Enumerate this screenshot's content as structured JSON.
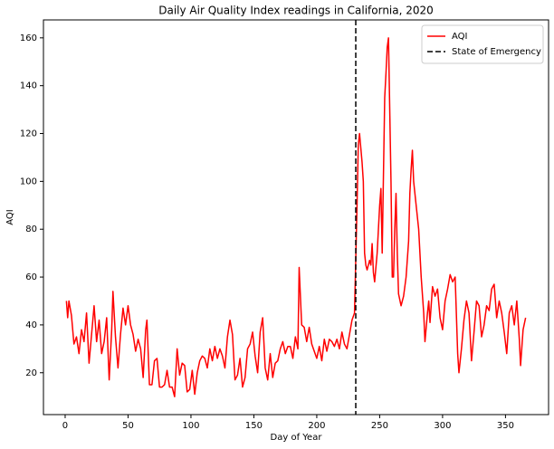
{
  "chart_data": {
    "type": "line",
    "title": "Daily Air Quality Index readings in California, 2020",
    "x_label": "Day of Year",
    "y_label": "AQI",
    "x": [
      1,
      2,
      3,
      5,
      7,
      9,
      11,
      13,
      15,
      17,
      19,
      21,
      23,
      25,
      27,
      29,
      31,
      33,
      35,
      37,
      38,
      40,
      42,
      44,
      46,
      48,
      50,
      52,
      54,
      56,
      58,
      60,
      62,
      64,
      65,
      67,
      69,
      71,
      73,
      75,
      77,
      79,
      81,
      83,
      85,
      87,
      89,
      91,
      93,
      95,
      97,
      99,
      101,
      103,
      105,
      107,
      109,
      111,
      113,
      115,
      117,
      119,
      121,
      123,
      125,
      127,
      129,
      131,
      133,
      135,
      137,
      139,
      141,
      143,
      145,
      147,
      149,
      151,
      153,
      155,
      157,
      159,
      161,
      163,
      165,
      167,
      169,
      171,
      173,
      175,
      177,
      179,
      181,
      183,
      185,
      186,
      188,
      190,
      192,
      194,
      196,
      198,
      200,
      202,
      204,
      206,
      208,
      210,
      212,
      214,
      216,
      218,
      220,
      222,
      224,
      226,
      228,
      230,
      232,
      233,
      234,
      236,
      237,
      238,
      239,
      240,
      242,
      243,
      244,
      245,
      246,
      248,
      249,
      250,
      251,
      252,
      254,
      255,
      256,
      257,
      258,
      259,
      260,
      261,
      262,
      263,
      264,
      265,
      267,
      269,
      271,
      273,
      274,
      275,
      276,
      277,
      279,
      281,
      283,
      285,
      286,
      288,
      289,
      290,
      292,
      294,
      296,
      298,
      300,
      302,
      304,
      306,
      308,
      310,
      312,
      313,
      315,
      317,
      319,
      321,
      323,
      325,
      327,
      329,
      331,
      333,
      335,
      337,
      339,
      341,
      343,
      345,
      347,
      349,
      351,
      353,
      355,
      357,
      359,
      361,
      362,
      364,
      366
    ],
    "series": [
      {
        "name": "AQI",
        "color": "#ff0000",
        "values": [
          50,
          43,
          50,
          44,
          32,
          35,
          28,
          38,
          33,
          45,
          24,
          36,
          48,
          33,
          42,
          28,
          33,
          43,
          17,
          38,
          54,
          35,
          22,
          36,
          47,
          40,
          48,
          40,
          36,
          29,
          34,
          30,
          18,
          38,
          42,
          15,
          15,
          25,
          26,
          14,
          14,
          15,
          21,
          14,
          14,
          10,
          30,
          19,
          24,
          23,
          12,
          13,
          21,
          11,
          20,
          25,
          27,
          26,
          22,
          30,
          25,
          31,
          26,
          30,
          27,
          22,
          35,
          42,
          36,
          17,
          19,
          26,
          14,
          18,
          30,
          32,
          37,
          27,
          20,
          37,
          43,
          22,
          17,
          28,
          18,
          24,
          25,
          30,
          33,
          28,
          31,
          31,
          26,
          35,
          30,
          64,
          40,
          39,
          33,
          39,
          32,
          29,
          26,
          31,
          25,
          34,
          29,
          34,
          33,
          31,
          34,
          30,
          37,
          32,
          30,
          36,
          42,
          45,
          90,
          115,
          120,
          108,
          100,
          70,
          65,
          63,
          67,
          65,
          74,
          62,
          58,
          70,
          80,
          90,
          97,
          70,
          135,
          145,
          156,
          160,
          130,
          100,
          60,
          60,
          80,
          95,
          70,
          53,
          48,
          52,
          60,
          75,
          95,
          105,
          113,
          100,
          90,
          80,
          60,
          45,
          33,
          45,
          50,
          41,
          56,
          52,
          55,
          43,
          38,
          50,
          55,
          61,
          58,
          60,
          28,
          20,
          30,
          42,
          50,
          45,
          25,
          37,
          50,
          48,
          35,
          40,
          48,
          46,
          55,
          57,
          43,
          50,
          45,
          37,
          28,
          45,
          48,
          40,
          50,
          34,
          23,
          38,
          43
        ]
      }
    ],
    "vline": {
      "x": 231,
      "name": "State of Emergency",
      "color": "#000000",
      "linestyle": "dashed"
    },
    "xlim": [
      -17.25,
      384.25
    ],
    "xticks": [
      0,
      50,
      100,
      150,
      200,
      250,
      300,
      350
    ],
    "ylim": [
      2.5,
      167.5
    ],
    "yticks": [
      20,
      40,
      60,
      80,
      100,
      120,
      140,
      160
    ],
    "legend": "upper right"
  }
}
